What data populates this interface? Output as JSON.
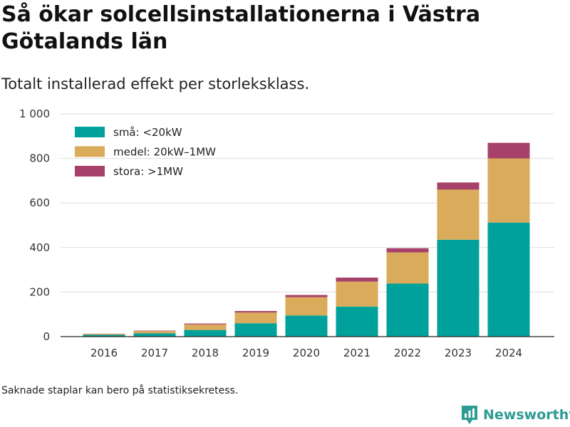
{
  "title": "Så ökar solcellsinstallationerna i Västra Götalands län",
  "subtitle": "Totalt installerad effekt per storleksklass.",
  "footnote": "Saknade staplar kan bero på statistiksekretess.",
  "brand": {
    "name": "Newsworthy",
    "icon": "newsworthy-logo-icon",
    "color": "#2e9c93"
  },
  "chart_data": {
    "type": "bar",
    "stacked": true,
    "categories": [
      "2016",
      "2017",
      "2018",
      "2019",
      "2020",
      "2021",
      "2022",
      "2023",
      "2024"
    ],
    "series": [
      {
        "name": "små: <20kW",
        "color": "#00a19a",
        "values": [
          8,
          15,
          30,
          60,
          95,
          135,
          238,
          435,
          512
        ]
      },
      {
        "name": "medel: 20kW–1MW",
        "color": "#d9ab5a",
        "values": [
          4,
          10,
          25,
          48,
          82,
          112,
          140,
          225,
          288
        ]
      },
      {
        "name": "stora: >1MW",
        "color": "#a8416a",
        "values": [
          1,
          2,
          4,
          7,
          10,
          18,
          19,
          32,
          70
        ]
      }
    ],
    "ylim": [
      0,
      1000
    ],
    "yticks": [
      0,
      200,
      400,
      600,
      800,
      1000
    ],
    "ytick_labels": [
      "0",
      "200",
      "400",
      "600",
      "800",
      "1 000"
    ],
    "grid": true,
    "legend_position": "top-left"
  }
}
